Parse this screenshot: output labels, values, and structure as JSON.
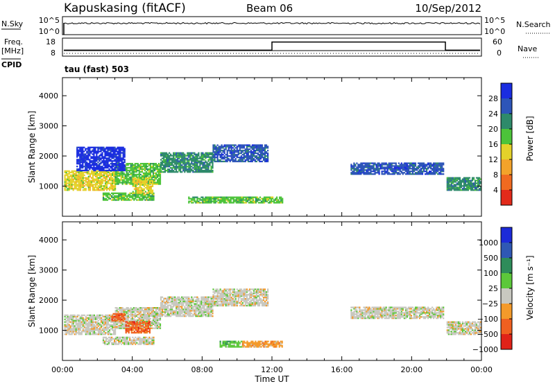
{
  "header": {
    "station": "Kapuskasing (fitACF)",
    "beam": "Beam 06",
    "date": "10/Sep/2012"
  },
  "nsky_panel": {
    "left_label": "N.Sky",
    "left_ticks": [
      "10^5",
      "10^0"
    ],
    "right_ticks": [
      "10^5",
      "10^0"
    ],
    "right_label": "N.Search"
  },
  "freq_panel": {
    "left_label_1": "Freq.",
    "left_label_2": "[MHz]",
    "left_ticks": [
      "18",
      "8"
    ],
    "right_ticks": [
      "60",
      "0"
    ],
    "right_label": "Nave",
    "cpid_label": "CPID",
    "cpid_value": "tau (fast) 503",
    "nave_steps": [
      {
        "t": 0,
        "v": 18
      },
      {
        "t": 12,
        "v": 50
      },
      {
        "t": 22,
        "v": 18
      },
      {
        "t": 24,
        "v": 18
      }
    ]
  },
  "chart_data": [
    {
      "type": "heatmap",
      "name": "power",
      "xlabel": "",
      "ylabel": "Slant Range [km]",
      "xlim": [
        0,
        24
      ],
      "ylim": [
        0,
        4600
      ],
      "yticks": [
        1000,
        2000,
        3000,
        4000
      ],
      "colorbar": {
        "label": "Power [dB]",
        "ticks": [
          "4",
          "8",
          "12",
          "16",
          "20",
          "24",
          "28"
        ],
        "colors": [
          "#1a2de0",
          "#2d55b8",
          "#2e8a6a",
          "#4cc33a",
          "#e4d22a",
          "#f3a32a",
          "#f06a20",
          "#e22a1a"
        ]
      },
      "regions": [
        {
          "t0": 0.1,
          "t1": 3.0,
          "r0": 850,
          "r1": 1500,
          "level": 4
        },
        {
          "t0": 3.0,
          "t1": 5.6,
          "r0": 1050,
          "r1": 1750,
          "level": 3
        },
        {
          "t0": 5.6,
          "t1": 8.6,
          "r0": 1450,
          "r1": 2100,
          "level": 2
        },
        {
          "t0": 8.6,
          "t1": 11.8,
          "r0": 1800,
          "r1": 2350,
          "level": 1
        },
        {
          "t0": 2.3,
          "t1": 5.2,
          "r0": 520,
          "r1": 780,
          "level": 3
        },
        {
          "t0": 4.0,
          "t1": 5.2,
          "r0": 750,
          "r1": 1250,
          "level": 4
        },
        {
          "t0": 7.2,
          "t1": 12.6,
          "r0": 430,
          "r1": 640,
          "level": 3
        },
        {
          "t0": 16.5,
          "t1": 21.8,
          "r0": 1380,
          "r1": 1780,
          "level": 1
        },
        {
          "t0": 22.0,
          "t1": 23.95,
          "r0": 850,
          "r1": 1300,
          "level": 2
        },
        {
          "t0": 0.8,
          "t1": 3.6,
          "r0": 1500,
          "r1": 2300,
          "level": 0
        }
      ]
    },
    {
      "type": "heatmap",
      "name": "velocity",
      "xlabel": "Time UT",
      "ylabel": "Slant Range [km]",
      "xlim": [
        0,
        24
      ],
      "ylim": [
        0,
        4600
      ],
      "xticks": [
        "00:00",
        "04:00",
        "08:00",
        "12:00",
        "16:00",
        "20:00",
        "00:00"
      ],
      "yticks": [
        1000,
        2000,
        3000,
        4000
      ],
      "colorbar": {
        "label": "Velocity [m s⁻¹]",
        "ticks": [
          "1000",
          "500",
          "100",
          "25",
          "−25",
          "−100",
          "−500",
          "−1000"
        ],
        "colors": [
          "#1c2ad8",
          "#2f58b4",
          "#2e8c5a",
          "#5cc83a",
          "#c8c8c0",
          "#f49a2a",
          "#f06020",
          "#e02218"
        ]
      },
      "regions": [
        {
          "t0": 0.1,
          "t1": 3.0,
          "r0": 850,
          "r1": 1500,
          "level": 4
        },
        {
          "t0": 3.0,
          "t1": 5.6,
          "r0": 1050,
          "r1": 1750,
          "level": 4
        },
        {
          "t0": 5.6,
          "t1": 8.6,
          "r0": 1450,
          "r1": 2100,
          "level": 4
        },
        {
          "t0": 8.6,
          "t1": 11.8,
          "r0": 1800,
          "r1": 2350,
          "level": 4
        },
        {
          "t0": 2.3,
          "t1": 5.2,
          "r0": 520,
          "r1": 780,
          "level": 4
        },
        {
          "t0": 3.6,
          "t1": 5.0,
          "r0": 900,
          "r1": 1300,
          "level": 6
        },
        {
          "t0": 2.8,
          "t1": 3.6,
          "r0": 1300,
          "r1": 1550,
          "level": 6
        },
        {
          "t0": 9.0,
          "t1": 10.3,
          "r0": 430,
          "r1": 640,
          "level": 3
        },
        {
          "t0": 10.3,
          "t1": 12.6,
          "r0": 430,
          "r1": 640,
          "level": 5
        },
        {
          "t0": 16.5,
          "t1": 21.8,
          "r0": 1380,
          "r1": 1780,
          "level": 4
        },
        {
          "t0": 22.0,
          "t1": 23.95,
          "r0": 850,
          "r1": 1300,
          "level": 4
        }
      ]
    }
  ]
}
